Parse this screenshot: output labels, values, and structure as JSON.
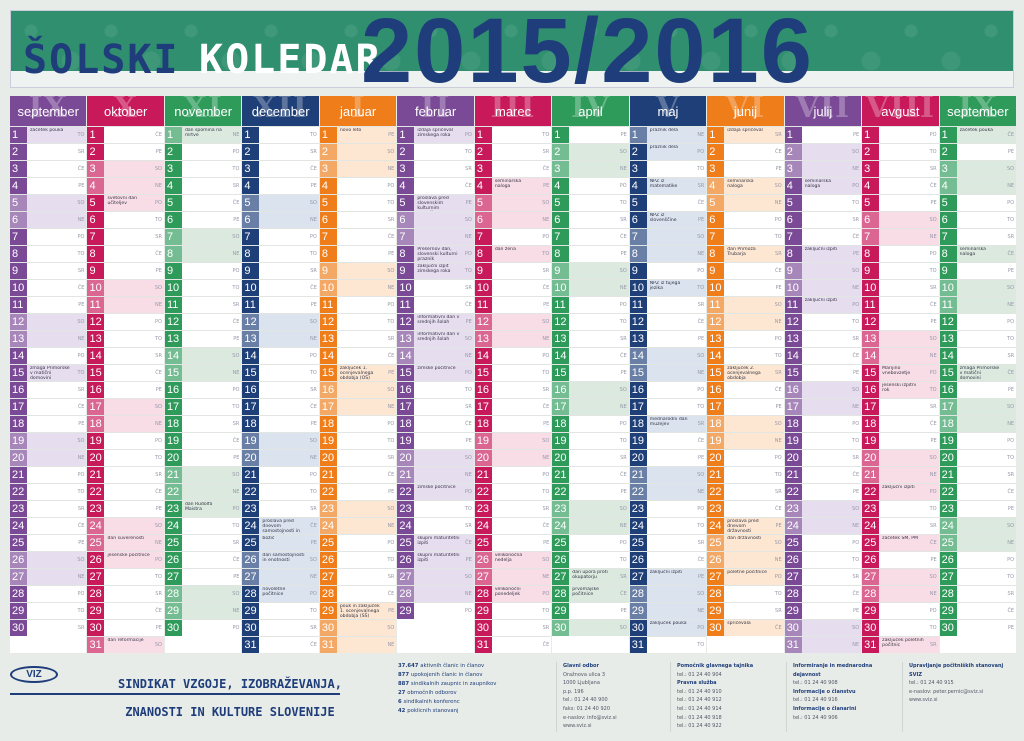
{
  "header": {
    "title_part1": "ŠOLSKI",
    "title_part2": "KOLEDAR",
    "year": "2015/2016"
  },
  "colors": {
    "purple": "#7b4a97",
    "red": "#c8195a",
    "green": "#2f9b5b",
    "navy": "#1f3f78",
    "orange": "#ef7d1a",
    "lilac": "#e6ddef",
    "mint": "#dbe9df",
    "peach": "#fde7d2"
  },
  "months": [
    {
      "roman": "IX",
      "name": "september",
      "color": "#7b4a97",
      "tint": "#e6ddef",
      "days": 30,
      "startDow": 1,
      "notes": {
        "1": "začetek pouka",
        "15": "zmaga Primorske v matični domovini"
      }
    },
    {
      "roman": "X",
      "name": "oktober",
      "color": "#c8195a",
      "tint": "#f8dde6",
      "days": 31,
      "startDow": 3,
      "notes": {
        "5": "svetovni dan učiteljev",
        "25": "dan suverenosti",
        "26": "jesenske počitnice",
        "31": "dan reformacije"
      }
    },
    {
      "roman": "XI",
      "name": "november",
      "color": "#2f9b5b",
      "tint": "#dbe9df",
      "days": 30,
      "startDow": 6,
      "notes": {
        "1": "dan spomina na mrtve",
        "23": "dan Rudolfa Maistra"
      }
    },
    {
      "roman": "XII",
      "name": "december",
      "color": "#1f3f78",
      "tint": "#dbe3ef",
      "days": 31,
      "startDow": 1,
      "notes": {
        "24": "proslava pred dnevom samostojnosti in enotnosti",
        "25": "božič",
        "26": "dan samostojnosti in enotnosti",
        "28": "novoletne počitnice"
      }
    },
    {
      "roman": "I",
      "name": "januar",
      "color": "#ef7d1a",
      "tint": "#fde7d2",
      "days": 31,
      "startDow": 4,
      "notes": {
        "1": "novo leto",
        "15": "zaključek 1. ocenjevalnega obdobja (OŠ)",
        "29": "pouk in zaključek 1. ocenjevalnega obdobja (SŠ)"
      }
    },
    {
      "roman": "II",
      "name": "februar",
      "color": "#7b4a97",
      "tint": "#e6ddef",
      "days": 29,
      "startDow": 0,
      "notes": {
        "1": "izdaja spričeval zimskega roka",
        "5": "proslava pred slovenskim kulturnim praznikom",
        "8": "Prešernov dan, slovenski kulturni praznik",
        "9": "zaključni izpit zimskega roka",
        "12": "informativni dan v srednjih šolah",
        "13": "informativni dan v srednjih šolah",
        "15": "zimske počitnice",
        "22": "zimske počitnice",
        "25": "skupni maturitetni izpiti",
        "26": "skupni maturitetni izpiti"
      }
    },
    {
      "roman": "III",
      "name": "marec",
      "color": "#c8195a",
      "tint": "#f8dde6",
      "days": 31,
      "startDow": 1,
      "notes": {
        "4": "seminarska naloga",
        "8": "dan žena",
        "26": "velikonočna nedelja",
        "28": "velikonočni ponedeljek"
      }
    },
    {
      "roman": "IV",
      "name": "april",
      "color": "#2f9b5b",
      "tint": "#dbe9df",
      "days": 30,
      "startDow": 4,
      "notes": {
        "27": "dan upora proti okupatorju",
        "28": "prvomajske počitnice"
      }
    },
    {
      "roman": "V",
      "name": "maj",
      "color": "#1f3f78",
      "tint": "#dbe3ef",
      "days": 31,
      "startDow": 6,
      "notes": {
        "1": "praznik dela",
        "2": "praznik dela",
        "4": "NPZ iz matematike",
        "6": "NPZ iz slovenščine",
        "10": "NPZ iz tujega jezika",
        "18": "mednarodni dan muzejev",
        "27": "zaključni izpiti",
        "30": "zaključek pouka"
      }
    },
    {
      "roman": "VI",
      "name": "junij",
      "color": "#ef7d1a",
      "tint": "#fde7d2",
      "days": 30,
      "startDow": 2,
      "notes": {
        "1": "izdaja spričeval",
        "4": "seminarska naloga",
        "8": "dan Primoža Trubarja",
        "15": "zaključek 2. ocenjevalnega obdobja",
        "24": "proslava pred dnevom državnosti",
        "25": "dan državnosti",
        "27": "poletne počitnice",
        "30": "spričevala"
      }
    },
    {
      "roman": "VII",
      "name": "julij",
      "color": "#7b4a97",
      "tint": "#e6ddef",
      "days": 31,
      "startDow": 4,
      "notes": {
        "4": "seminarska naloga",
        "8": "zaključni izpiti",
        "11": "zaključni izpiti"
      }
    },
    {
      "roman": "VIII",
      "name": "avgust",
      "color": "#c8195a",
      "tint": "#f8dde6",
      "days": 31,
      "startDow": 0,
      "notes": {
        "15": "Marijino vnebovzetje",
        "16": "jesenski izpitni rok",
        "22": "zaključni izpiti",
        "25": "začetek SM, PM",
        "31": "zaključek poletnih počitnic"
      }
    },
    {
      "roman": "IX",
      "name": "september",
      "color": "#2f9b5b",
      "tint": "#dbe9df",
      "days": 30,
      "startDow": 3,
      "notes": {
        "1": "začetek pouka",
        "8": "seminarska naloga",
        "15": "zmaga Primorske v matični domovini"
      }
    }
  ],
  "weekdays": [
    "PO",
    "TO",
    "SR",
    "ČE",
    "PE",
    "SO",
    "NE"
  ],
  "footer": {
    "logo": "VIZ",
    "union_line1": "SINDIKAT VZGOJE, IZOBRAŽEVANJA,",
    "union_line2": "ZNANOSTI IN KULTURE SLOVENIJE",
    "stats": [
      {
        "num": "37.647",
        "text": "aktivnih članic in članov"
      },
      {
        "num": "877",
        "text": "upokojenih članic in članov"
      },
      {
        "num": "887",
        "text": "sindikalnih zaupnic in zaupnikov"
      },
      {
        "num": "27",
        "text": "območnih odborov"
      },
      {
        "num": "6",
        "text": "sindikalnih konferenc"
      },
      {
        "num": "42",
        "text": "poklicnih stanovanj"
      }
    ],
    "col1": [
      "Glavni odbor",
      "Oražnova ulica 3",
      "1000 Ljubljana",
      "p.p. 196",
      "tel.: 01 24 40 900",
      "faks: 01 24 40 920",
      "e-naslov: info@sviz.si",
      "www.sviz.si"
    ],
    "col2": [
      "Pomočnik glavnega tajnika",
      "tel.: 01 24 40 904",
      "Pravna služba",
      "tel.: 01 24 40 910",
      "tel.: 01 24 40 912",
      "tel.: 01 24 40 914",
      "tel.: 01 24 40 918",
      "tel.: 01 24 40 922"
    ],
    "col3": [
      "Informiranje in mednarodna dejavnost",
      "tel.: 01 24 40 908",
      "Informacije o članstvu",
      "tel.: 01 24 40 916",
      "Informacije o članarini",
      "tel.: 01 24 40 906"
    ],
    "col4": [
      "Upravljanje počitniških stanovanj SVIZ",
      "tel.: 01 24 40 915",
      "e-naslov: peter.pernic@sviz.si",
      "www.sviz.si"
    ]
  }
}
